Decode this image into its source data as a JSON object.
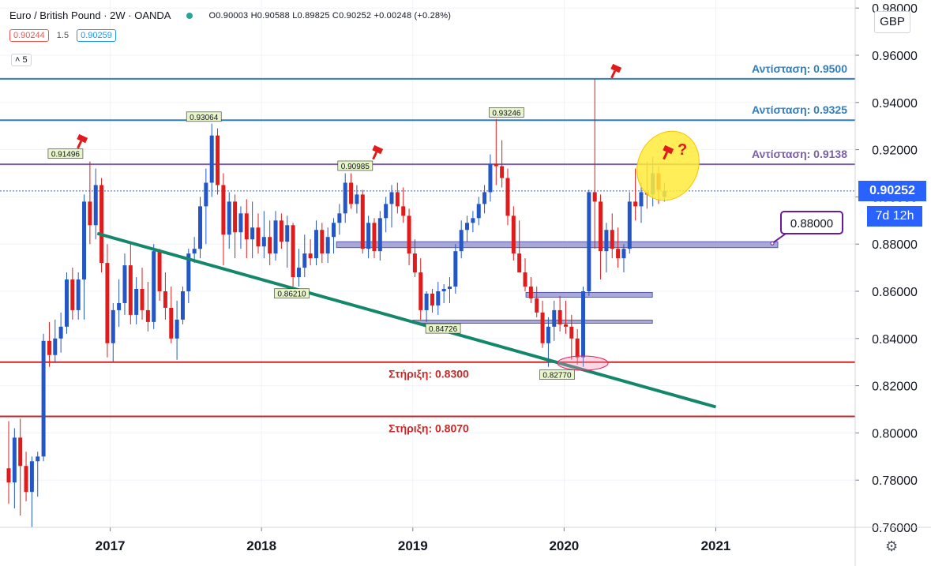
{
  "header": {
    "symbol_title": "Euro / British Pound · 2W · OANDA",
    "ohlc": "O0.90003 H0.90588 L0.89825 C0.90252 +0.00248 (+0.28%)",
    "sell_price": "0.90244",
    "spread": "1.5",
    "buy_price": "0.90259",
    "indicator_toggle": "5",
    "currency": "GBP",
    "last_price": "0.90252",
    "countdown": "7d 12h"
  },
  "colors": {
    "up": "#2457c5",
    "down": "#e01b1b",
    "resistance": "#2f7ec0",
    "resistance_purple": "#7b5ea7",
    "support": "#c62828",
    "trendline": "#14876b",
    "zone": "#8c8ccc",
    "price_tag": "#2962ff"
  },
  "chart_data": {
    "type": "candlestick",
    "title": "Euro / British Pound",
    "interval": "2W",
    "x_range": [
      "2016-05",
      "2021-03"
    ],
    "ylim": [
      0.76,
      0.98
    ],
    "y_ticks": [
      "0.76000",
      "0.78000",
      "0.80000",
      "0.82000",
      "0.84000",
      "0.86000",
      "0.88000",
      "0.90000",
      "0.92000",
      "0.94000",
      "0.96000",
      "0.98000"
    ],
    "x_ticks": [
      "2017",
      "2018",
      "2019",
      "2020",
      "2021"
    ],
    "horizontal_lines": [
      {
        "label": "Αντίσταση: 0.9500",
        "value": 0.95,
        "kind": "resistance"
      },
      {
        "label": "Αντίσταση: 0.9325",
        "value": 0.9325,
        "kind": "resistance"
      },
      {
        "label": "Αντίσταση: 0.9138",
        "value": 0.9138,
        "kind": "resistance_purple"
      },
      {
        "label": "Στήριξη: 0.8300",
        "value": 0.83,
        "kind": "support"
      },
      {
        "label": "Στήριξη: 0.8070",
        "value": 0.807,
        "kind": "support"
      }
    ],
    "zones": [
      {
        "from": "2018-07",
        "to": "2021-03",
        "low": 0.8785,
        "high": 0.881,
        "label": "0.88000"
      },
      {
        "from": "2019-10",
        "to": "2020-08",
        "low": 0.8575,
        "high": 0.8595
      },
      {
        "from": "2019-01",
        "to": "2020-08",
        "low": 0.8465,
        "high": 0.8478
      }
    ],
    "trendline": {
      "from": [
        "2016-12",
        0.8845
      ],
      "to": [
        "2021-01",
        0.811
      ]
    },
    "price_labels": [
      {
        "text": "0.91496",
        "x": "2016-09",
        "value": 0.91496,
        "pos": "above"
      },
      {
        "text": "0.93064",
        "x": "2017-08",
        "value": 0.93064,
        "pos": "above"
      },
      {
        "text": "0.86210",
        "x": "2018-03",
        "value": 0.8621,
        "pos": "below"
      },
      {
        "text": "0.90985",
        "x": "2018-08",
        "value": 0.90985,
        "pos": "above"
      },
      {
        "text": "0.84726",
        "x": "2019-03",
        "value": 0.84726,
        "pos": "below"
      },
      {
        "text": "0.93246",
        "x": "2019-08",
        "value": 0.93246,
        "pos": "above"
      },
      {
        "text": "0.82770",
        "x": "2019-12",
        "value": 0.8277,
        "pos": "below"
      }
    ],
    "candles": [
      {
        "d": "2016-05-01",
        "o": 0.785,
        "h": 0.805,
        "l": 0.77,
        "c": 0.779
      },
      {
        "d": "2016-05-15",
        "o": 0.779,
        "h": 0.802,
        "l": 0.768,
        "c": 0.798
      },
      {
        "d": "2016-05-29",
        "o": 0.798,
        "h": 0.806,
        "l": 0.765,
        "c": 0.786
      },
      {
        "d": "2016-06-12",
        "o": 0.786,
        "h": 0.792,
        "l": 0.771,
        "c": 0.775
      },
      {
        "d": "2016-06-26",
        "o": 0.775,
        "h": 0.79,
        "l": 0.76,
        "c": 0.788
      },
      {
        "d": "2016-07-10",
        "o": 0.788,
        "h": 0.792,
        "l": 0.773,
        "c": 0.79
      },
      {
        "d": "2016-07-24",
        "o": 0.79,
        "h": 0.842,
        "l": 0.788,
        "c": 0.839
      },
      {
        "d": "2016-08-07",
        "o": 0.839,
        "h": 0.847,
        "l": 0.828,
        "c": 0.833
      },
      {
        "d": "2016-08-21",
        "o": 0.833,
        "h": 0.848,
        "l": 0.83,
        "c": 0.84
      },
      {
        "d": "2016-09-04",
        "o": 0.84,
        "h": 0.851,
        "l": 0.834,
        "c": 0.845
      },
      {
        "d": "2016-09-18",
        "o": 0.845,
        "h": 0.868,
        "l": 0.842,
        "c": 0.865
      },
      {
        "d": "2016-10-02",
        "o": 0.865,
        "h": 0.87,
        "l": 0.848,
        "c": 0.852
      },
      {
        "d": "2016-10-16",
        "o": 0.852,
        "h": 0.868,
        "l": 0.848,
        "c": 0.865
      },
      {
        "d": "2016-10-30",
        "o": 0.865,
        "h": 0.901,
        "l": 0.848,
        "c": 0.898
      },
      {
        "d": "2016-11-13",
        "o": 0.898,
        "h": 0.915,
        "l": 0.88,
        "c": 0.888
      },
      {
        "d": "2016-11-27",
        "o": 0.888,
        "h": 0.912,
        "l": 0.882,
        "c": 0.905
      },
      {
        "d": "2016-12-11",
        "o": 0.905,
        "h": 0.908,
        "l": 0.868,
        "c": 0.872
      },
      {
        "d": "2016-12-25",
        "o": 0.872,
        "h": 0.88,
        "l": 0.832,
        "c": 0.838
      },
      {
        "d": "2017-01-08",
        "o": 0.838,
        "h": 0.855,
        "l": 0.83,
        "c": 0.852
      },
      {
        "d": "2017-01-22",
        "o": 0.852,
        "h": 0.865,
        "l": 0.845,
        "c": 0.855
      },
      {
        "d": "2017-02-05",
        "o": 0.855,
        "h": 0.876,
        "l": 0.85,
        "c": 0.871
      },
      {
        "d": "2017-02-19",
        "o": 0.871,
        "h": 0.88,
        "l": 0.846,
        "c": 0.85
      },
      {
        "d": "2017-03-05",
        "o": 0.85,
        "h": 0.866,
        "l": 0.846,
        "c": 0.861
      },
      {
        "d": "2017-03-19",
        "o": 0.861,
        "h": 0.87,
        "l": 0.848,
        "c": 0.852
      },
      {
        "d": "2017-04-02",
        "o": 0.852,
        "h": 0.864,
        "l": 0.843,
        "c": 0.847
      },
      {
        "d": "2017-04-16",
        "o": 0.847,
        "h": 0.88,
        "l": 0.844,
        "c": 0.877
      },
      {
        "d": "2017-04-30",
        "o": 0.877,
        "h": 0.878,
        "l": 0.856,
        "c": 0.86
      },
      {
        "d": "2017-05-14",
        "o": 0.86,
        "h": 0.868,
        "l": 0.848,
        "c": 0.853
      },
      {
        "d": "2017-05-28",
        "o": 0.853,
        "h": 0.862,
        "l": 0.838,
        "c": 0.84
      },
      {
        "d": "2017-06-11",
        "o": 0.84,
        "h": 0.856,
        "l": 0.831,
        "c": 0.848
      },
      {
        "d": "2017-06-25",
        "o": 0.848,
        "h": 0.862,
        "l": 0.846,
        "c": 0.86
      },
      {
        "d": "2017-07-09",
        "o": 0.86,
        "h": 0.878,
        "l": 0.855,
        "c": 0.876
      },
      {
        "d": "2017-07-23",
        "o": 0.876,
        "h": 0.883,
        "l": 0.872,
        "c": 0.878
      },
      {
        "d": "2017-08-06",
        "o": 0.878,
        "h": 0.9,
        "l": 0.874,
        "c": 0.896
      },
      {
        "d": "2017-08-20",
        "o": 0.896,
        "h": 0.912,
        "l": 0.88,
        "c": 0.906
      },
      {
        "d": "2017-09-03",
        "o": 0.906,
        "h": 0.931,
        "l": 0.9,
        "c": 0.926
      },
      {
        "d": "2017-09-17",
        "o": 0.926,
        "h": 0.929,
        "l": 0.901,
        "c": 0.905
      },
      {
        "d": "2017-10-01",
        "o": 0.905,
        "h": 0.91,
        "l": 0.871,
        "c": 0.884
      },
      {
        "d": "2017-10-15",
        "o": 0.884,
        "h": 0.902,
        "l": 0.878,
        "c": 0.898
      },
      {
        "d": "2017-10-29",
        "o": 0.898,
        "h": 0.901,
        "l": 0.874,
        "c": 0.885
      },
      {
        "d": "2017-11-12",
        "o": 0.885,
        "h": 0.896,
        "l": 0.878,
        "c": 0.893
      },
      {
        "d": "2017-11-26",
        "o": 0.893,
        "h": 0.899,
        "l": 0.874,
        "c": 0.882
      },
      {
        "d": "2017-12-10",
        "o": 0.882,
        "h": 0.898,
        "l": 0.874,
        "c": 0.887
      },
      {
        "d": "2017-12-24",
        "o": 0.887,
        "h": 0.893,
        "l": 0.876,
        "c": 0.879
      },
      {
        "d": "2018-01-07",
        "o": 0.879,
        "h": 0.894,
        "l": 0.874,
        "c": 0.883
      },
      {
        "d": "2018-01-21",
        "o": 0.883,
        "h": 0.89,
        "l": 0.871,
        "c": 0.876
      },
      {
        "d": "2018-02-04",
        "o": 0.876,
        "h": 0.894,
        "l": 0.873,
        "c": 0.89
      },
      {
        "d": "2018-02-18",
        "o": 0.89,
        "h": 0.893,
        "l": 0.878,
        "c": 0.881
      },
      {
        "d": "2018-03-04",
        "o": 0.881,
        "h": 0.892,
        "l": 0.87,
        "c": 0.888
      },
      {
        "d": "2018-03-18",
        "o": 0.888,
        "h": 0.889,
        "l": 0.862,
        "c": 0.866
      },
      {
        "d": "2018-04-01",
        "o": 0.866,
        "h": 0.878,
        "l": 0.862,
        "c": 0.87
      },
      {
        "d": "2018-04-15",
        "o": 0.87,
        "h": 0.884,
        "l": 0.866,
        "c": 0.876
      },
      {
        "d": "2018-04-29",
        "o": 0.876,
        "h": 0.882,
        "l": 0.871,
        "c": 0.874
      },
      {
        "d": "2018-05-13",
        "o": 0.874,
        "h": 0.89,
        "l": 0.871,
        "c": 0.886
      },
      {
        "d": "2018-05-27",
        "o": 0.886,
        "h": 0.889,
        "l": 0.872,
        "c": 0.876
      },
      {
        "d": "2018-06-10",
        "o": 0.876,
        "h": 0.887,
        "l": 0.872,
        "c": 0.883
      },
      {
        "d": "2018-06-24",
        "o": 0.883,
        "h": 0.891,
        "l": 0.876,
        "c": 0.889
      },
      {
        "d": "2018-07-08",
        "o": 0.889,
        "h": 0.897,
        "l": 0.884,
        "c": 0.893
      },
      {
        "d": "2018-07-22",
        "o": 0.893,
        "h": 0.91,
        "l": 0.889,
        "c": 0.906
      },
      {
        "d": "2018-08-05",
        "o": 0.906,
        "h": 0.91,
        "l": 0.895,
        "c": 0.897
      },
      {
        "d": "2018-08-19",
        "o": 0.897,
        "h": 0.905,
        "l": 0.893,
        "c": 0.901
      },
      {
        "d": "2018-09-02",
        "o": 0.901,
        "h": 0.903,
        "l": 0.876,
        "c": 0.878
      },
      {
        "d": "2018-09-16",
        "o": 0.878,
        "h": 0.892,
        "l": 0.874,
        "c": 0.889
      },
      {
        "d": "2018-09-30",
        "o": 0.889,
        "h": 0.891,
        "l": 0.874,
        "c": 0.877
      },
      {
        "d": "2018-10-14",
        "o": 0.877,
        "h": 0.894,
        "l": 0.873,
        "c": 0.891
      },
      {
        "d": "2018-10-28",
        "o": 0.891,
        "h": 0.9,
        "l": 0.885,
        "c": 0.897
      },
      {
        "d": "2018-11-11",
        "o": 0.897,
        "h": 0.905,
        "l": 0.887,
        "c": 0.902
      },
      {
        "d": "2018-11-25",
        "o": 0.902,
        "h": 0.906,
        "l": 0.893,
        "c": 0.896
      },
      {
        "d": "2018-12-09",
        "o": 0.896,
        "h": 0.904,
        "l": 0.889,
        "c": 0.892
      },
      {
        "d": "2018-12-23",
        "o": 0.892,
        "h": 0.895,
        "l": 0.871,
        "c": 0.876
      },
      {
        "d": "2019-01-06",
        "o": 0.876,
        "h": 0.882,
        "l": 0.866,
        "c": 0.868
      },
      {
        "d": "2019-01-20",
        "o": 0.868,
        "h": 0.874,
        "l": 0.848,
        "c": 0.852
      },
      {
        "d": "2019-02-03",
        "o": 0.852,
        "h": 0.86,
        "l": 0.847,
        "c": 0.859
      },
      {
        "d": "2019-02-17",
        "o": 0.859,
        "h": 0.861,
        "l": 0.851,
        "c": 0.854
      },
      {
        "d": "2019-03-03",
        "o": 0.854,
        "h": 0.864,
        "l": 0.85,
        "c": 0.86
      },
      {
        "d": "2019-03-17",
        "o": 0.86,
        "h": 0.863,
        "l": 0.855,
        "c": 0.861
      },
      {
        "d": "2019-03-31",
        "o": 0.861,
        "h": 0.866,
        "l": 0.855,
        "c": 0.862
      },
      {
        "d": "2019-04-14",
        "o": 0.862,
        "h": 0.88,
        "l": 0.859,
        "c": 0.877
      },
      {
        "d": "2019-04-28",
        "o": 0.877,
        "h": 0.89,
        "l": 0.874,
        "c": 0.886
      },
      {
        "d": "2019-05-12",
        "o": 0.886,
        "h": 0.892,
        "l": 0.881,
        "c": 0.889
      },
      {
        "d": "2019-05-26",
        "o": 0.889,
        "h": 0.894,
        "l": 0.885,
        "c": 0.891
      },
      {
        "d": "2019-06-09",
        "o": 0.891,
        "h": 0.9,
        "l": 0.888,
        "c": 0.897
      },
      {
        "d": "2019-06-23",
        "o": 0.897,
        "h": 0.905,
        "l": 0.893,
        "c": 0.902
      },
      {
        "d": "2019-07-07",
        "o": 0.902,
        "h": 0.918,
        "l": 0.898,
        "c": 0.914
      },
      {
        "d": "2019-07-21",
        "o": 0.914,
        "h": 0.933,
        "l": 0.905,
        "c": 0.913
      },
      {
        "d": "2019-08-04",
        "o": 0.913,
        "h": 0.924,
        "l": 0.904,
        "c": 0.908
      },
      {
        "d": "2019-08-18",
        "o": 0.908,
        "h": 0.912,
        "l": 0.888,
        "c": 0.892
      },
      {
        "d": "2019-09-01",
        "o": 0.892,
        "h": 0.896,
        "l": 0.873,
        "c": 0.876
      },
      {
        "d": "2019-09-15",
        "o": 0.876,
        "h": 0.89,
        "l": 0.869,
        "c": 0.868
      },
      {
        "d": "2019-09-29",
        "o": 0.868,
        "h": 0.874,
        "l": 0.86,
        "c": 0.862
      },
      {
        "d": "2019-10-13",
        "o": 0.862,
        "h": 0.866,
        "l": 0.855,
        "c": 0.857
      },
      {
        "d": "2019-10-27",
        "o": 0.857,
        "h": 0.862,
        "l": 0.849,
        "c": 0.851
      },
      {
        "d": "2019-11-10",
        "o": 0.851,
        "h": 0.856,
        "l": 0.836,
        "c": 0.838
      },
      {
        "d": "2019-11-24",
        "o": 0.838,
        "h": 0.849,
        "l": 0.828,
        "c": 0.845
      },
      {
        "d": "2019-12-08",
        "o": 0.845,
        "h": 0.856,
        "l": 0.839,
        "c": 0.852
      },
      {
        "d": "2019-12-22",
        "o": 0.852,
        "h": 0.858,
        "l": 0.843,
        "c": 0.846
      },
      {
        "d": "2020-01-05",
        "o": 0.846,
        "h": 0.856,
        "l": 0.842,
        "c": 0.845
      },
      {
        "d": "2020-01-19",
        "o": 0.845,
        "h": 0.85,
        "l": 0.831,
        "c": 0.84
      },
      {
        "d": "2020-02-02",
        "o": 0.84,
        "h": 0.844,
        "l": 0.829,
        "c": 0.832
      },
      {
        "d": "2020-02-16",
        "o": 0.832,
        "h": 0.862,
        "l": 0.828,
        "c": 0.86
      },
      {
        "d": "2020-03-01",
        "o": 0.86,
        "h": 0.903,
        "l": 0.858,
        "c": 0.902
      },
      {
        "d": "2020-03-15",
        "o": 0.902,
        "h": 0.95,
        "l": 0.878,
        "c": 0.898
      },
      {
        "d": "2020-03-29",
        "o": 0.898,
        "h": 0.901,
        "l": 0.865,
        "c": 0.877
      },
      {
        "d": "2020-04-12",
        "o": 0.877,
        "h": 0.889,
        "l": 0.868,
        "c": 0.886
      },
      {
        "d": "2020-04-26",
        "o": 0.886,
        "h": 0.893,
        "l": 0.874,
        "c": 0.878
      },
      {
        "d": "2020-05-10",
        "o": 0.878,
        "h": 0.887,
        "l": 0.87,
        "c": 0.874
      },
      {
        "d": "2020-05-24",
        "o": 0.874,
        "h": 0.88,
        "l": 0.868,
        "c": 0.878
      },
      {
        "d": "2020-06-07",
        "o": 0.878,
        "h": 0.902,
        "l": 0.876,
        "c": 0.898
      },
      {
        "d": "2020-06-21",
        "o": 0.898,
        "h": 0.912,
        "l": 0.89,
        "c": 0.896
      },
      {
        "d": "2020-07-05",
        "o": 0.896,
        "h": 0.906,
        "l": 0.889,
        "c": 0.902
      },
      {
        "d": "2020-07-19",
        "o": 0.902,
        "h": 0.915,
        "l": 0.895,
        "c": 0.901
      },
      {
        "d": "2020-08-02",
        "o": 0.901,
        "h": 0.917,
        "l": 0.896,
        "c": 0.91
      },
      {
        "d": "2020-08-16",
        "o": 0.91,
        "h": 0.913,
        "l": 0.897,
        "c": 0.903
      },
      {
        "d": "2020-08-30",
        "o": 0.9,
        "h": 0.906,
        "l": 0.898,
        "c": 0.9025
      }
    ]
  }
}
